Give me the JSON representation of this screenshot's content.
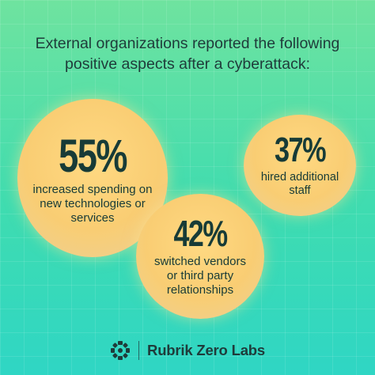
{
  "headline": {
    "line1": "External organizations reported the following",
    "line2": "positive aspects after a cyberattack:"
  },
  "stats": [
    {
      "percent": "55%",
      "line1": "increased spending on",
      "line2": "new technologies or",
      "line3": "services"
    },
    {
      "percent": "37%",
      "line1": "hired additional",
      "line2": "staff"
    },
    {
      "percent": "42%",
      "line1": "switched vendors",
      "line2": "or third party",
      "line3": "relationships"
    }
  ],
  "footer": {
    "brand": "Rubrik Zero Labs",
    "icon": "rubrik-logo-icon"
  },
  "colors": {
    "background_top": "#6fe39f",
    "background_bottom": "#2fd6c4",
    "bubble": "#f9cd73",
    "text": "#1f3b3a"
  }
}
